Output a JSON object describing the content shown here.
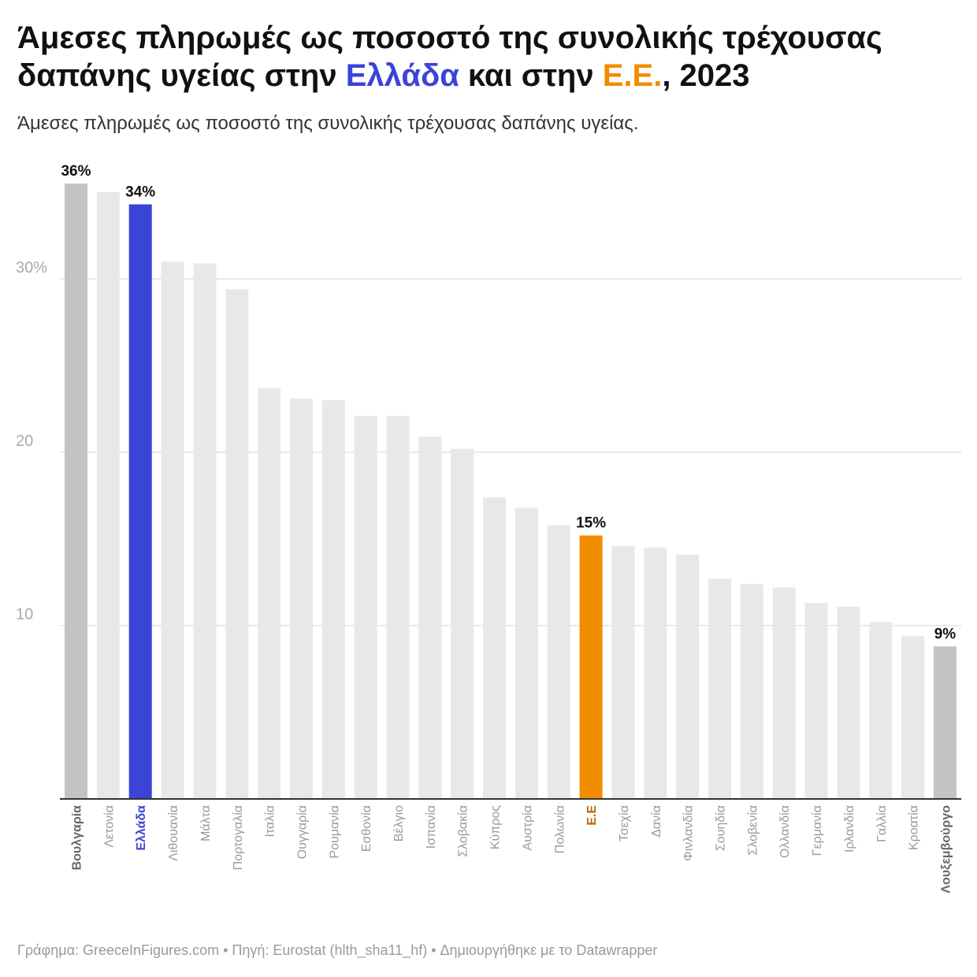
{
  "title": {
    "part1": "Άμεσες πληρωμές ως ποσοστό της συνολικής τρέχουσας δαπάνης υγείας στην ",
    "greece": "Ελλάδα",
    "part2": " και στην ",
    "eu": "Ε.Ε.",
    "part3": ", 2023"
  },
  "subtitle": "Άμεσες πληρωμές ως ποσοστό της συνολικής τρέχουσας δαπάνης υγείας.",
  "footer": "Γράφημα: GreeceInFigures.com • Πηγή: Eurostat (hlth_sha11_hf) • Δημιουργήθηκε με το Datawrapper",
  "colors": {
    "default_bar": "#e8e8e8",
    "extreme_bar": "#c3c3c3",
    "greece": "#3a44d8",
    "eu": "#f28c00",
    "gridline": "#e2e2e2",
    "axis": "#333333",
    "tick_label": "#aaaaaa",
    "category_label": "#9a9a9a",
    "extreme_label": "#666666",
    "eu_label": "#b36a00"
  },
  "chart_data": {
    "type": "bar",
    "categories": [
      "Βουλγαρία",
      "Λετονία",
      "Ελλάδα",
      "Λιθουανία",
      "Μάλτα",
      "Πορτογαλία",
      "Ιταλία",
      "Ουγγαρία",
      "Ρουμανία",
      "Εσθονία",
      "Βέλγιο",
      "Ισπανία",
      "Σλοβακία",
      "Κύπρος",
      "Αυστρία",
      "Πολωνία",
      "Ε.Ε",
      "Τσεχία",
      "Δανία",
      "Φινλανδία",
      "Σουηδία",
      "Σλοβενία",
      "Ολλανδία",
      "Γερμανία",
      "Ιρλανδία",
      "Γαλλία",
      "Κροατία",
      "Λουξεμβούργο"
    ],
    "values": [
      35.5,
      35.0,
      34.3,
      31.0,
      30.9,
      29.4,
      23.7,
      23.1,
      23.0,
      22.1,
      22.1,
      20.9,
      20.2,
      17.4,
      16.8,
      15.8,
      15.2,
      14.6,
      14.5,
      14.1,
      12.7,
      12.4,
      12.2,
      11.3,
      11.1,
      10.2,
      9.4,
      8.8
    ],
    "highlight": {
      "Βουλγαρία": "extreme",
      "Λουξεμβούργο": "extreme",
      "Ελλάδα": "greece",
      "Ε.Ε": "eu"
    },
    "value_labels": {
      "Βουλγαρία": "36%",
      "Ελλάδα": "34%",
      "Ε.Ε": "15%",
      "Λουξεμβούργο": "9%"
    },
    "yticks": [
      {
        "value": 10,
        "label": "10"
      },
      {
        "value": 20,
        "label": "20"
      },
      {
        "value": 30,
        "label": "30%"
      }
    ],
    "ylim": [
      0,
      36
    ],
    "grid": true
  }
}
